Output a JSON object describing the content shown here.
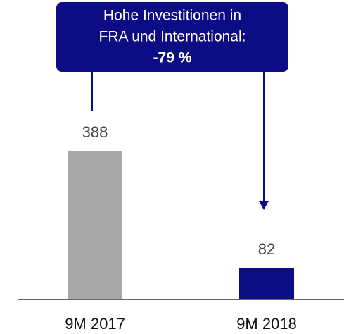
{
  "chart_data": {
    "type": "bar",
    "categories": [
      "9M 2017",
      "9M 2018"
    ],
    "values": [
      388,
      82
    ],
    "colors": [
      "#a7a9a9",
      "#0c0c85"
    ],
    "annotation": {
      "lines": [
        "Hohe Investitionen in",
        "FRA und International:",
        "-79 %"
      ],
      "color": "#0c0c85"
    }
  }
}
